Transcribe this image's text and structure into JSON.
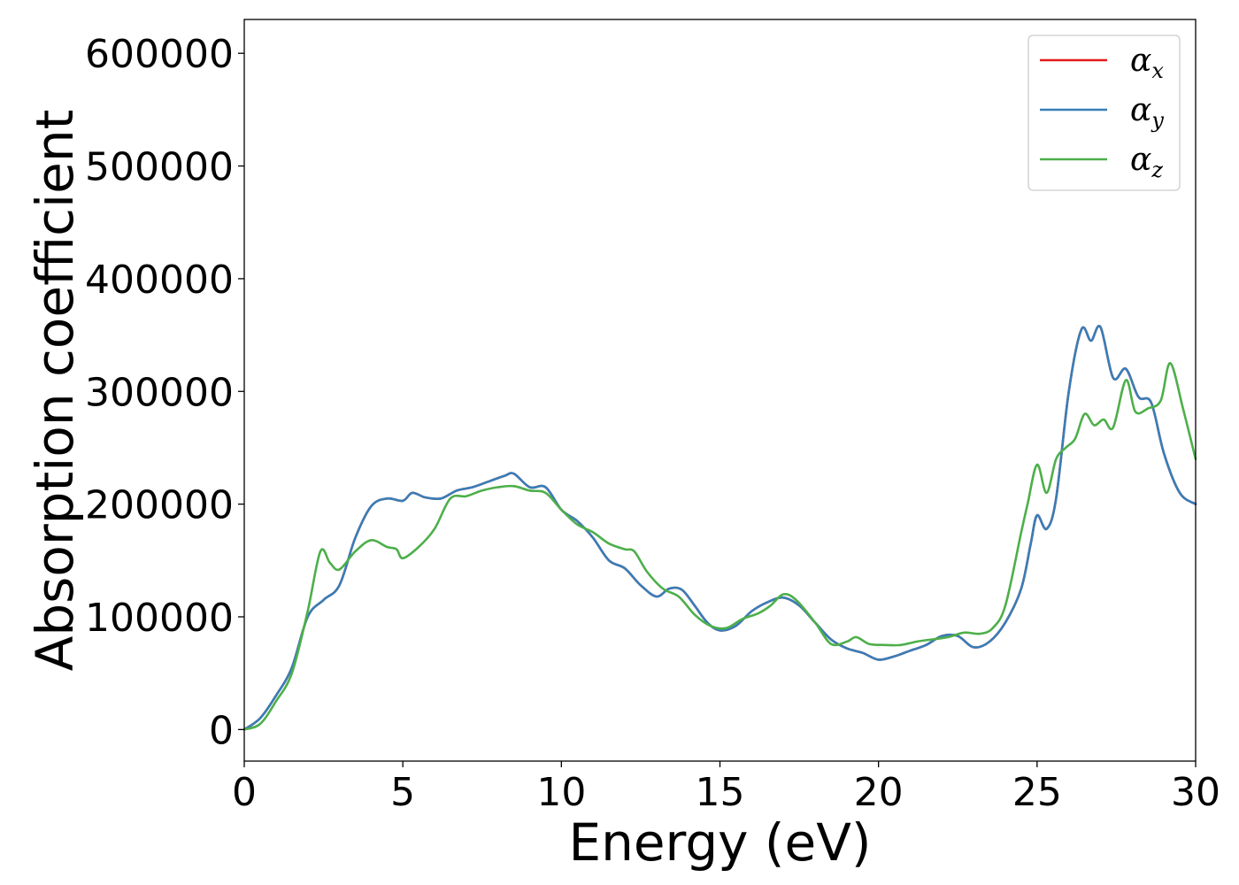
{
  "chart_data": {
    "type": "line",
    "xlabel": "Energy (eV)",
    "ylabel": "Absorption coefficient",
    "xlim": [
      0,
      30
    ],
    "ylim": [
      -28000,
      630000
    ],
    "xticks": [
      0,
      5,
      10,
      15,
      20,
      25,
      30
    ],
    "yticks": [
      0,
      100000,
      200000,
      300000,
      400000,
      500000,
      600000
    ],
    "grid": false,
    "legend_position": "top-right",
    "series": [
      {
        "name": "α_x",
        "label_main": "α",
        "label_sub": "x",
        "color": "#e41a1c",
        "x": [
          0,
          0.5,
          1.0,
          1.5,
          2.0,
          2.5,
          3.0,
          3.5,
          4.0,
          4.5,
          5.0,
          5.3,
          5.7,
          6.2,
          6.7,
          7.2,
          7.7,
          8.2,
          8.5,
          9.0,
          9.5,
          10.0,
          10.5,
          11.0,
          11.5,
          12.0,
          12.5,
          13.0,
          13.4,
          13.8,
          14.2,
          14.6,
          15.0,
          15.5,
          16.0,
          16.5,
          17.0,
          17.5,
          18.0,
          18.5,
          19.0,
          19.5,
          20.0,
          20.5,
          21.0,
          21.5,
          22.0,
          22.5,
          23.0,
          23.5,
          24.0,
          24.5,
          24.8,
          25.0,
          25.3,
          25.6,
          26.0,
          26.4,
          26.7,
          27.0,
          27.4,
          27.8,
          28.2,
          28.6,
          29.0,
          29.5,
          30.0
        ],
        "y": [
          0,
          10000,
          30000,
          55000,
          100000,
          115000,
          128000,
          170000,
          198000,
          205000,
          203000,
          210000,
          206000,
          205000,
          212000,
          215000,
          220000,
          225000,
          227000,
          215000,
          215000,
          195000,
          185000,
          170000,
          150000,
          143000,
          128000,
          118000,
          125000,
          124000,
          110000,
          95000,
          88000,
          92000,
          105000,
          113000,
          117000,
          110000,
          95000,
          80000,
          72000,
          68000,
          62000,
          65000,
          70000,
          75000,
          83000,
          83000,
          73000,
          78000,
          95000,
          125000,
          165000,
          190000,
          178000,
          205000,
          300000,
          355000,
          345000,
          357000,
          312000,
          320000,
          295000,
          290000,
          245000,
          210000,
          200000
        ]
      },
      {
        "name": "α_y",
        "label_main": "α",
        "label_sub": "y",
        "color": "#377eb8",
        "x": [
          0,
          0.5,
          1.0,
          1.5,
          2.0,
          2.5,
          3.0,
          3.5,
          4.0,
          4.5,
          5.0,
          5.3,
          5.7,
          6.2,
          6.7,
          7.2,
          7.7,
          8.2,
          8.5,
          9.0,
          9.5,
          10.0,
          10.5,
          11.0,
          11.5,
          12.0,
          12.5,
          13.0,
          13.4,
          13.8,
          14.2,
          14.6,
          15.0,
          15.5,
          16.0,
          16.5,
          17.0,
          17.5,
          18.0,
          18.5,
          19.0,
          19.5,
          20.0,
          20.5,
          21.0,
          21.5,
          22.0,
          22.5,
          23.0,
          23.5,
          24.0,
          24.5,
          24.8,
          25.0,
          25.3,
          25.6,
          26.0,
          26.4,
          26.7,
          27.0,
          27.4,
          27.8,
          28.2,
          28.6,
          29.0,
          29.5,
          30.0
        ],
        "y": [
          0,
          10000,
          30000,
          55000,
          100000,
          115000,
          128000,
          170000,
          198000,
          205000,
          203000,
          210000,
          206000,
          205000,
          212000,
          215000,
          220000,
          225000,
          227000,
          215000,
          215000,
          195000,
          185000,
          170000,
          150000,
          143000,
          128000,
          118000,
          125000,
          124000,
          110000,
          95000,
          88000,
          92000,
          105000,
          113000,
          117000,
          110000,
          95000,
          80000,
          72000,
          68000,
          62000,
          65000,
          70000,
          75000,
          83000,
          83000,
          73000,
          78000,
          95000,
          125000,
          165000,
          190000,
          178000,
          205000,
          300000,
          355000,
          345000,
          357000,
          312000,
          320000,
          295000,
          290000,
          245000,
          210000,
          200000
        ]
      },
      {
        "name": "α_z",
        "label_main": "α",
        "label_sub": "z",
        "color": "#4daf4a",
        "x": [
          0,
          0.5,
          1.0,
          1.5,
          2.0,
          2.4,
          2.7,
          3.0,
          3.5,
          4.0,
          4.5,
          4.8,
          5.0,
          5.5,
          6.0,
          6.5,
          7.0,
          7.5,
          8.0,
          8.5,
          9.0,
          9.5,
          10.0,
          10.5,
          11.0,
          11.5,
          12.0,
          12.3,
          12.7,
          13.2,
          13.7,
          14.2,
          14.7,
          15.2,
          15.7,
          16.2,
          16.6,
          17.0,
          17.4,
          18.0,
          18.5,
          19.0,
          19.3,
          19.7,
          20.2,
          20.7,
          21.2,
          21.7,
          22.2,
          22.7,
          23.2,
          23.6,
          24.0,
          24.5,
          24.7,
          25.0,
          25.3,
          25.6,
          25.9,
          26.2,
          26.5,
          26.8,
          27.1,
          27.4,
          27.8,
          28.1,
          28.5,
          28.9,
          29.2,
          29.6,
          30.0
        ],
        "y": [
          0,
          5000,
          25000,
          50000,
          105000,
          158000,
          148000,
          142000,
          158000,
          168000,
          162000,
          160000,
          152000,
          162000,
          178000,
          205000,
          207000,
          212000,
          215000,
          216000,
          212000,
          210000,
          195000,
          182000,
          175000,
          165000,
          160000,
          158000,
          140000,
          125000,
          118000,
          102000,
          92000,
          90000,
          98000,
          103000,
          110000,
          120000,
          115000,
          95000,
          76000,
          78000,
          82000,
          76000,
          75000,
          75000,
          78000,
          80000,
          82000,
          86000,
          85000,
          90000,
          110000,
          175000,
          200000,
          235000,
          210000,
          240000,
          250000,
          258000,
          280000,
          270000,
          275000,
          268000,
          310000,
          282000,
          285000,
          292000,
          325000,
          285000,
          240000
        ]
      }
    ]
  }
}
